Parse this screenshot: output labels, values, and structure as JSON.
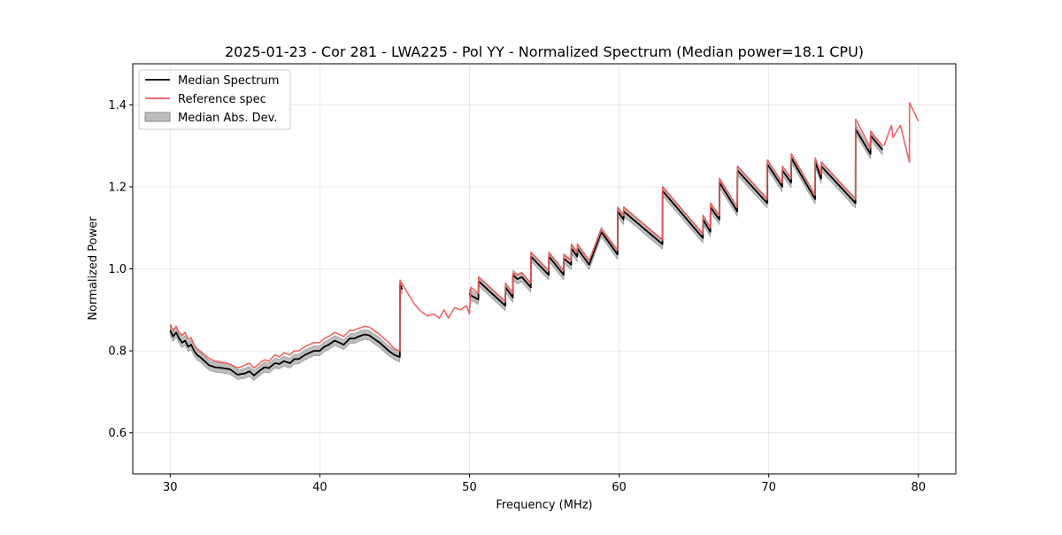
{
  "chart_data": {
    "type": "line",
    "title": "2025-01-23 - Cor 281 - LWA225 - Pol YY - Normalized Spectrum (Median power=18.1 CPU)",
    "xlabel": "Frequency (MHz)",
    "ylabel": "Normalized Power",
    "xlim": [
      27.5,
      82.5
    ],
    "ylim": [
      0.5,
      1.5
    ],
    "xticks": [
      30,
      40,
      50,
      60,
      70,
      80
    ],
    "xtick_labels": [
      "30",
      "40",
      "50",
      "60",
      "70",
      "80"
    ],
    "yticks": [
      0.6,
      0.8,
      1.0,
      1.2,
      1.4
    ],
    "ytick_labels": [
      "0.6",
      "0.8",
      "1.0",
      "1.2",
      "1.4"
    ],
    "grid": true,
    "legend": {
      "placement": "top-left",
      "entries": [
        "Median Spectrum",
        "Reference spec",
        "Median Abs. Dev."
      ]
    },
    "colors": {
      "median": "#000000",
      "reference": "#f05a5a",
      "mad_fill": "#bdbdbd",
      "mad_edge": "#8c8c8c"
    },
    "series": [
      {
        "name": "Median Spectrum",
        "x": [
          30.0,
          30.2,
          30.4,
          30.6,
          30.8,
          31.0,
          31.2,
          31.4,
          31.6,
          31.8,
          32.0,
          32.3,
          32.6,
          33.0,
          33.5,
          34.0,
          34.5,
          35.0,
          35.3,
          35.6,
          36.0,
          36.3,
          36.6,
          37.0,
          37.3,
          37.6,
          38.0,
          38.3,
          38.6,
          39.0,
          39.3,
          39.6,
          40.0,
          40.3,
          40.6,
          41.0,
          41.3,
          41.6,
          42.0,
          42.3,
          42.6,
          43.0,
          43.3,
          43.6,
          44.0,
          44.3,
          44.6,
          45.0,
          45.35,
          45.36,
          45.5,
          null,
          50.0,
          50.1,
          50.6,
          50.61,
          51.5,
          52.4,
          52.41,
          52.9,
          52.91,
          53.2,
          53.5,
          54.1,
          54.11,
          55.3,
          55.31,
          56.3,
          56.31,
          56.8,
          56.81,
          57.2,
          57.21,
          58.0,
          58.81,
          59.9,
          59.91,
          60.3,
          60.31,
          62.9,
          62.91,
          65.6,
          65.61,
          66.1,
          66.11,
          66.7,
          66.71,
          67.9,
          67.91,
          69.9,
          69.91,
          70.9,
          70.91,
          71.5,
          71.51,
          73.1,
          73.11,
          73.5,
          73.51,
          75.8,
          75.81,
          76.8,
          76.81,
          77.6
        ],
        "y": [
          0.85,
          0.835,
          0.845,
          0.83,
          0.82,
          0.825,
          0.81,
          0.815,
          0.8,
          0.79,
          0.785,
          0.775,
          0.765,
          0.76,
          0.758,
          0.755,
          0.742,
          0.745,
          0.75,
          0.74,
          0.752,
          0.76,
          0.758,
          0.77,
          0.768,
          0.775,
          0.77,
          0.78,
          0.78,
          0.79,
          0.795,
          0.8,
          0.8,
          0.81,
          0.815,
          0.825,
          0.82,
          0.815,
          0.83,
          0.83,
          0.835,
          0.84,
          0.838,
          0.83,
          0.82,
          0.81,
          0.8,
          0.79,
          0.785,
          0.962,
          0.95,
          null,
          0.94,
          0.935,
          0.925,
          0.97,
          0.94,
          0.91,
          0.955,
          0.93,
          0.985,
          0.975,
          0.98,
          0.955,
          1.03,
          0.985,
          1.03,
          0.985,
          1.025,
          1.01,
          1.05,
          1.03,
          1.05,
          1.01,
          1.09,
          1.035,
          1.14,
          1.12,
          1.14,
          1.06,
          1.19,
          1.075,
          1.12,
          1.09,
          1.15,
          1.12,
          1.21,
          1.14,
          1.24,
          1.16,
          1.255,
          1.2,
          1.24,
          1.21,
          1.27,
          1.17,
          1.26,
          1.22,
          1.25,
          1.16,
          1.34,
          1.28,
          1.325,
          1.29
        ]
      },
      {
        "name": "Reference spec",
        "x": [
          30.0,
          30.2,
          30.4,
          30.6,
          30.8,
          31.0,
          31.2,
          31.4,
          31.6,
          31.8,
          32.0,
          32.3,
          32.6,
          33.0,
          33.5,
          34.0,
          34.5,
          35.0,
          35.3,
          35.6,
          36.0,
          36.3,
          36.6,
          37.0,
          37.3,
          37.6,
          38.0,
          38.3,
          38.6,
          39.0,
          39.3,
          39.6,
          40.0,
          40.3,
          40.6,
          41.0,
          41.3,
          41.6,
          42.0,
          42.3,
          42.6,
          43.0,
          43.3,
          43.6,
          44.0,
          44.3,
          44.6,
          45.0,
          45.35,
          45.36,
          45.8,
          46.3,
          46.8,
          47.2,
          47.6,
          48.0,
          48.3,
          48.6,
          49.0,
          49.4,
          49.8,
          50.0,
          50.1,
          50.6,
          50.61,
          51.5,
          52.4,
          52.41,
          52.9,
          52.91,
          53.2,
          53.5,
          54.1,
          54.11,
          55.3,
          55.31,
          56.3,
          56.31,
          56.8,
          56.81,
          57.2,
          57.21,
          58.0,
          58.81,
          59.9,
          59.91,
          60.3,
          60.31,
          62.9,
          62.91,
          65.6,
          65.61,
          66.1,
          66.11,
          66.7,
          66.71,
          67.9,
          67.91,
          69.9,
          69.91,
          70.9,
          70.91,
          71.5,
          71.51,
          73.1,
          73.11,
          73.5,
          73.51,
          75.8,
          75.81,
          76.8,
          76.81,
          77.6,
          null,
          77.7,
          78.2,
          78.3,
          78.8,
          79.4,
          79.41,
          80.0
        ],
        "y": [
          0.865,
          0.85,
          0.86,
          0.845,
          0.838,
          0.845,
          0.828,
          0.832,
          0.815,
          0.805,
          0.8,
          0.79,
          0.782,
          0.775,
          0.772,
          0.768,
          0.758,
          0.765,
          0.77,
          0.758,
          0.77,
          0.778,
          0.775,
          0.79,
          0.785,
          0.795,
          0.79,
          0.8,
          0.8,
          0.81,
          0.815,
          0.82,
          0.82,
          0.83,
          0.835,
          0.845,
          0.84,
          0.835,
          0.85,
          0.85,
          0.855,
          0.86,
          0.858,
          0.85,
          0.84,
          0.83,
          0.82,
          0.805,
          0.8,
          0.972,
          0.945,
          0.915,
          0.895,
          0.885,
          0.89,
          0.88,
          0.9,
          0.88,
          0.905,
          0.9,
          0.91,
          0.89,
          0.955,
          0.94,
          0.98,
          0.95,
          0.92,
          0.965,
          0.94,
          0.99,
          0.985,
          0.99,
          0.965,
          1.04,
          0.995,
          1.04,
          0.995,
          1.035,
          1.02,
          1.06,
          1.04,
          1.06,
          1.02,
          1.095,
          1.045,
          1.15,
          1.13,
          1.15,
          1.07,
          1.2,
          1.085,
          1.13,
          1.1,
          1.16,
          1.13,
          1.22,
          1.15,
          1.25,
          1.17,
          1.265,
          1.21,
          1.25,
          1.22,
          1.28,
          1.18,
          1.27,
          1.23,
          1.26,
          1.17,
          1.365,
          1.295,
          1.335,
          1.3,
          null,
          1.3,
          1.35,
          1.32,
          1.35,
          1.26,
          1.405,
          1.36
        ]
      }
    ],
    "mad_band_halfwidth": 0.012
  }
}
